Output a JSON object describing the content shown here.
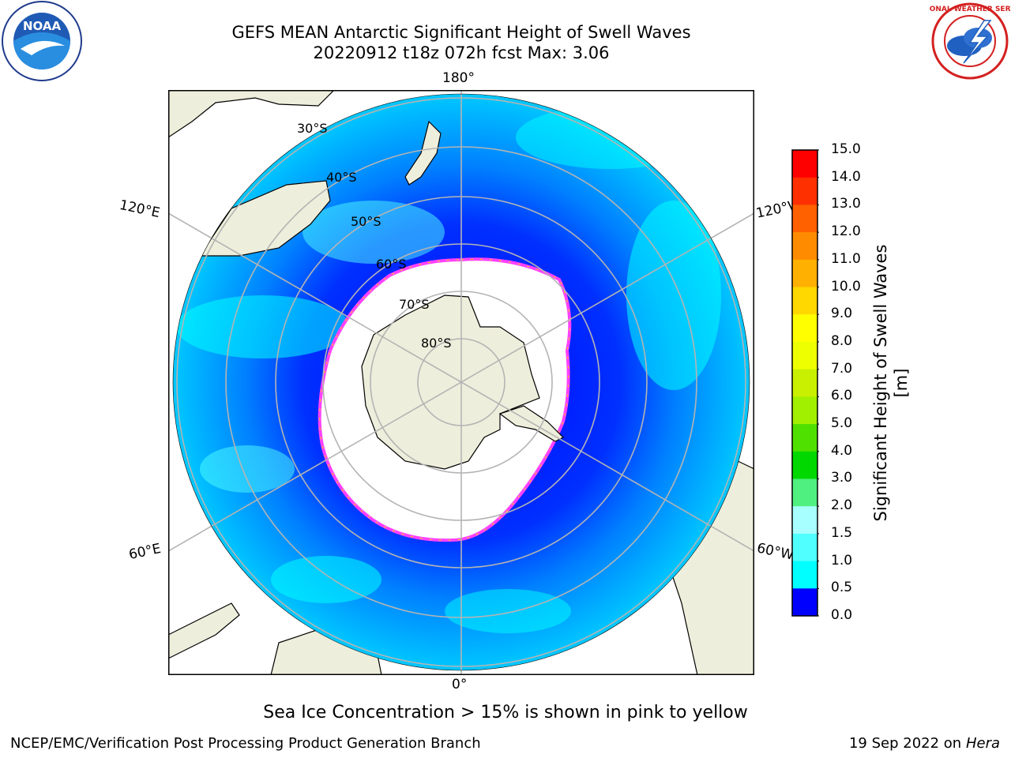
{
  "title_line1": "GEFS MEAN Antarctic Significant Height of Swell Waves",
  "title_line2": "20220912 t18z 072h fcst   Max: 3.06",
  "longitude_labels": {
    "top": "180°",
    "bottom": "0°",
    "upper_left": "120°E",
    "upper_right": "120°W",
    "lower_left": "60°E",
    "lower_right": "60°W"
  },
  "latitude_labels": [
    "30°S",
    "40°S",
    "50°S",
    "60°S",
    "70°S",
    "80°S"
  ],
  "colorbar": {
    "label": "Significant Height of Swell Waves [m]",
    "ticks": [
      "15.0",
      "14.0",
      "13.0",
      "12.0",
      "11.0",
      "10.0",
      "9.0",
      "8.0",
      "7.0",
      "6.0",
      "5.0",
      "4.0",
      "3.0",
      "2.0",
      "1.5",
      "1.0",
      "0.5",
      "0.0"
    ],
    "colors": [
      "#ff0000",
      "#ff3000",
      "#ff6000",
      "#ff8c00",
      "#ffb000",
      "#ffd800",
      "#ffff00",
      "#eeff00",
      "#c8f000",
      "#a0f000",
      "#50e000",
      "#00d800",
      "#50f080",
      "#a8ffff",
      "#50ffff",
      "#00ffff",
      "#0080ff",
      "#0000ff"
    ]
  },
  "sea_ice_note": "Sea Ice Concentration > 15% is shown in pink to yellow",
  "footer_left": "NCEP/EMC/Verification Post Processing Product Generation Branch",
  "footer_date": "19 Sep 2022 on",
  "footer_host": "Hera",
  "logos": {
    "noaa_text": "NOAA",
    "nws_text": "NATIONAL WEATHER SERVICE"
  },
  "colors": {
    "land": "#eeeedc",
    "ocean_low": "#0000ff",
    "ocean_mid": "#0080ff",
    "ocean_high": "#00ffff",
    "grid": "#b4b4b4",
    "ice_edge": "#ff40ff"
  }
}
